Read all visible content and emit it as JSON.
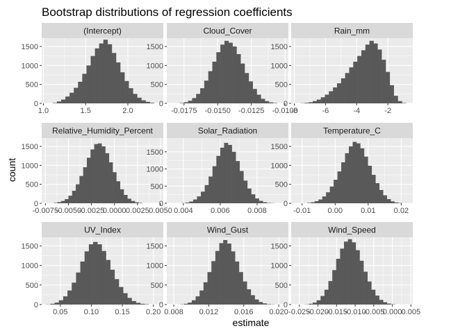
{
  "chart_data": {
    "type": "bar",
    "title": "Bootstrap distributions of regression coefficients",
    "xlabel": "estimate",
    "ylabel": "count",
    "grid": true,
    "facets_layout": "3x3",
    "colors": {
      "panel_bg": "#ebebeb",
      "strip_bg": "#d9d9d9",
      "bar": "#595959",
      "grid": "#ffffff"
    },
    "facets": [
      {
        "name": "(Intercept)",
        "xlim": [
          0.98,
          2.42
        ],
        "ylim": [
          0,
          1720
        ],
        "xticks": [
          1.0,
          1.5,
          2.0
        ],
        "xtick_labels": [
          "1.0",
          "1.5",
          "2.0"
        ],
        "yticks": [
          0,
          500,
          1000,
          1500
        ],
        "ytick_labels": [
          "0",
          "500",
          "1000",
          "1500"
        ],
        "bin_start": 1.11,
        "bin_width": 0.05,
        "counts": [
          10,
          50,
          100,
          180,
          280,
          410,
          570,
          780,
          1000,
          1250,
          1450,
          1580,
          1680,
          1560,
          1330,
          1080,
          820,
          590,
          400,
          250,
          150,
          80,
          40,
          15
        ]
      },
      {
        "name": "Cloud_Cover",
        "xlim": [
          -0.01878,
          -0.00975
        ],
        "ylim": [
          0,
          1720
        ],
        "xticks": [
          -0.0175,
          -0.015,
          -0.0125,
          -0.01
        ],
        "xtick_labels": [
          "-0.0175",
          "-0.0150",
          "-0.0125",
          "-0.0100"
        ],
        "yticks": [
          0,
          500,
          1000,
          1500
        ],
        "ytick_labels": [
          "0",
          "500",
          "1000",
          "1500"
        ],
        "bin_start": -0.0178,
        "bin_width": 0.0003,
        "counts": [
          10,
          30,
          70,
          140,
          250,
          400,
          600,
          850,
          1100,
          1350,
          1550,
          1650,
          1600,
          1500,
          1300,
          1050,
          800,
          580,
          380,
          230,
          120,
          60,
          25,
          10
        ]
      },
      {
        "name": "Rain_mm",
        "xlim": [
          -8.2,
          -0.4
        ],
        "ylim": [
          0,
          1720
        ],
        "xticks": [
          -8,
          -6,
          -4,
          -2
        ],
        "xtick_labels": [
          "-8",
          "-6",
          "-4",
          "-2"
        ],
        "yticks": [
          0,
          500,
          1000,
          1500
        ],
        "ytick_labels": [
          "0",
          "500",
          "1000",
          "1500"
        ],
        "bin_start": -7.6,
        "bin_width": 0.26,
        "counts": [
          5,
          15,
          30,
          60,
          100,
          160,
          230,
          320,
          420,
          530,
          660,
          800,
          950,
          1100,
          1250,
          1400,
          1550,
          1650,
          1580,
          1420,
          1150,
          830,
          480,
          200,
          60,
          10
        ]
      },
      {
        "name": "Relative_Humidity_Percent",
        "xlim": [
          -0.0079,
          0.0053
        ],
        "ylim": [
          0,
          1720
        ],
        "xticks": [
          -0.0075,
          -0.005,
          -0.0025,
          0.0,
          0.0025,
          0.005
        ],
        "xtick_labels": [
          "-0.0075",
          "-0.0050",
          "-0.0025",
          "0.0000",
          "0.0025",
          "0.0050"
        ],
        "yticks": [
          0,
          500,
          1000,
          1500
        ],
        "ytick_labels": [
          "0",
          "500",
          "1000",
          "1500"
        ],
        "bin_start": -0.0066,
        "bin_width": 0.0004,
        "counts": [
          10,
          30,
          60,
          110,
          200,
          330,
          500,
          720,
          950,
          1200,
          1420,
          1560,
          1580,
          1500,
          1320,
          1080,
          820,
          580,
          370,
          220,
          120,
          60,
          25,
          10
        ]
      },
      {
        "name": "Solar_Radiation",
        "xlim": [
          0.0031,
          0.0097
        ],
        "ylim": [
          0,
          1900
        ],
        "xticks": [
          0.004,
          0.006,
          0.008
        ],
        "xtick_labels": [
          "0.004",
          "0.006",
          "0.008"
        ],
        "yticks": [
          0,
          500,
          1000,
          1500
        ],
        "ytick_labels": [
          "0",
          "500",
          "1000",
          "1500"
        ],
        "bin_start": 0.0039,
        "bin_width": 0.00021,
        "counts": [
          5,
          20,
          50,
          110,
          200,
          340,
          530,
          780,
          1080,
          1380,
          1620,
          1760,
          1700,
          1500,
          1230,
          940,
          660,
          430,
          260,
          140,
          70,
          30,
          10,
          5
        ]
      },
      {
        "name": "Temperature_C",
        "xlim": [
          -0.0133,
          0.0235
        ],
        "ylim": [
          0,
          1720
        ],
        "xticks": [
          -0.01,
          0.0,
          0.01,
          0.02
        ],
        "xtick_labels": [
          "-0.01",
          "0.00",
          "0.01",
          "0.02"
        ],
        "yticks": [
          0,
          500,
          1000,
          1500
        ],
        "ytick_labels": [
          "0",
          "500",
          "1000",
          "1500"
        ],
        "bin_start": -0.0085,
        "bin_width": 0.00115,
        "counts": [
          10,
          25,
          55,
          100,
          180,
          290,
          440,
          620,
          840,
          1080,
          1320,
          1500,
          1620,
          1580,
          1450,
          1230,
          990,
          750,
          530,
          350,
          210,
          110,
          50,
          20,
          8
        ]
      },
      {
        "name": "UV_Index",
        "xlim": [
          0.02,
          0.216
        ],
        "ylim": [
          0,
          1720
        ],
        "xticks": [
          0.05,
          0.1,
          0.15,
          0.2
        ],
        "xtick_labels": [
          "0.05",
          "0.10",
          "0.15",
          "0.20"
        ],
        "yticks": [
          0,
          500,
          1000,
          1500
        ],
        "ytick_labels": [
          "0",
          "500",
          "1000",
          "1500"
        ],
        "bin_start": 0.027,
        "bin_width": 0.0069,
        "counts": [
          5,
          20,
          50,
          110,
          210,
          360,
          560,
          820,
          1100,
          1360,
          1540,
          1600,
          1540,
          1370,
          1140,
          890,
          650,
          450,
          290,
          170,
          90,
          45,
          20,
          8
        ]
      },
      {
        "name": "Wind_Gust",
        "xlim": [
          0.0072,
          0.0211
        ],
        "ylim": [
          0,
          1720
        ],
        "xticks": [
          0.008,
          0.012,
          0.016,
          0.02
        ],
        "xtick_labels": [
          "0.008",
          "0.012",
          "0.016",
          "0.020"
        ],
        "yticks": [
          0,
          500,
          1000,
          1500
        ],
        "ytick_labels": [
          "0",
          "500",
          "1000",
          "1500"
        ],
        "bin_start": 0.0087,
        "bin_width": 0.00045,
        "counts": [
          5,
          20,
          50,
          110,
          210,
          360,
          570,
          830,
          1110,
          1370,
          1570,
          1650,
          1560,
          1360,
          1100,
          830,
          590,
          390,
          240,
          130,
          65,
          30,
          10,
          5
        ]
      },
      {
        "name": "Wind_Speed",
        "xlim": [
          -0.0272,
          0.0055
        ],
        "ylim": [
          0,
          1720
        ],
        "xticks": [
          -0.025,
          -0.02,
          -0.015,
          -0.01,
          -0.005,
          0.0,
          0.005
        ],
        "xtick_labels": [
          "-0.025",
          "-0.020",
          "-0.015",
          "-0.010",
          "-0.005",
          "0.000",
          "0.005"
        ],
        "yticks": [
          0,
          500,
          1000,
          1500
        ],
        "ytick_labels": [
          "0",
          "500",
          "1000",
          "1500"
        ],
        "bin_start": -0.0235,
        "bin_width": 0.00105,
        "counts": [
          5,
          20,
          50,
          110,
          220,
          380,
          600,
          880,
          1170,
          1430,
          1610,
          1670,
          1590,
          1390,
          1120,
          840,
          590,
          380,
          230,
          120,
          60,
          25,
          8
        ]
      }
    ]
  }
}
